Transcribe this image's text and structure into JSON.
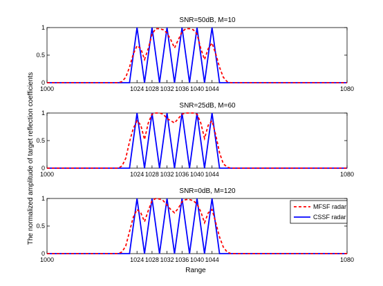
{
  "figure": {
    "ylabel": "The normalized amplitude of target reflection coefficients",
    "xlabel": "Range"
  },
  "legend": {
    "placement": "top-right of bottom subplot",
    "entries": [
      "MFSF radar",
      "CSSF radar"
    ]
  },
  "colors": {
    "mfsf": "#ff0000",
    "cssf": "#0000ff",
    "axes": "#000000"
  },
  "chart_data": [
    {
      "type": "line",
      "title": "SNR=50dB, M=10",
      "xlim": [
        1000,
        1080
      ],
      "ylim": [
        0,
        1
      ],
      "xticks": [
        1000,
        1024,
        1028,
        1032,
        1036,
        1040,
        1044,
        1080
      ],
      "yticks": [
        0,
        0.5,
        1
      ],
      "series": [
        {
          "name": "CSSF radar",
          "style": "solid",
          "color": "#0000ff",
          "x": [
            1000,
            1022,
            1024,
            1026,
            1028,
            1030,
            1032,
            1034,
            1036,
            1038,
            1040,
            1042,
            1044,
            1046,
            1080
          ],
          "y": [
            0,
            0,
            1,
            0,
            1,
            0,
            1,
            0,
            1,
            0,
            1,
            0,
            1,
            0,
            0
          ]
        },
        {
          "name": "MFSF radar",
          "style": "dashed",
          "color": "#ff0000",
          "x": [
            1000,
            1019,
            1020,
            1021,
            1022,
            1023,
            1024,
            1025,
            1026,
            1027,
            1028,
            1029,
            1030,
            1031,
            1032,
            1033,
            1034,
            1035,
            1036,
            1037,
            1038,
            1039,
            1040,
            1041,
            1042,
            1043,
            1044,
            1045,
            1046,
            1047,
            1048,
            1049,
            1080
          ],
          "y": [
            0,
            0,
            0.02,
            0.1,
            0.28,
            0.52,
            0.67,
            0.62,
            0.42,
            0.62,
            0.88,
            0.98,
            0.98,
            0.96,
            0.9,
            0.78,
            0.63,
            0.78,
            0.92,
            0.98,
            0.98,
            0.96,
            0.88,
            0.62,
            0.42,
            0.62,
            0.72,
            0.52,
            0.28,
            0.1,
            0.02,
            0,
            0
          ]
        }
      ]
    },
    {
      "type": "line",
      "title": "SNR=25dB, M=60",
      "xlim": [
        1000,
        1080
      ],
      "ylim": [
        0,
        1
      ],
      "xticks": [
        1000,
        1024,
        1028,
        1032,
        1036,
        1040,
        1044,
        1080
      ],
      "yticks": [
        0,
        0.5,
        1
      ],
      "series": [
        {
          "name": "CSSF radar",
          "style": "solid",
          "color": "#0000ff",
          "x": [
            1000,
            1022,
            1024,
            1026,
            1028,
            1030,
            1032,
            1034,
            1036,
            1038,
            1040,
            1042,
            1044,
            1046,
            1080
          ],
          "y": [
            0,
            0,
            1,
            0,
            1,
            0,
            1,
            0,
            1,
            0,
            1,
            0,
            1,
            0,
            0
          ]
        },
        {
          "name": "MFSF radar",
          "style": "dashed",
          "color": "#ff0000",
          "x": [
            1000,
            1019,
            1020,
            1021,
            1022,
            1023,
            1024,
            1025,
            1026,
            1027,
            1028,
            1029,
            1030,
            1031,
            1032,
            1033,
            1034,
            1035,
            1036,
            1037,
            1038,
            1039,
            1040,
            1041,
            1042,
            1043,
            1044,
            1045,
            1046,
            1047,
            1048,
            1049,
            1080
          ],
          "y": [
            0,
            0,
            0.04,
            0.18,
            0.48,
            0.72,
            0.86,
            0.78,
            0.52,
            0.82,
            0.98,
            1.0,
            1.0,
            0.98,
            0.9,
            0.86,
            0.82,
            0.9,
            0.98,
            1.0,
            1.0,
            1.0,
            0.98,
            0.82,
            0.54,
            0.78,
            0.86,
            0.6,
            0.28,
            0.08,
            0.02,
            0,
            0
          ]
        }
      ]
    },
    {
      "type": "line",
      "title": "SNR=0dB, M=120",
      "xlim": [
        1000,
        1080
      ],
      "ylim": [
        0,
        1
      ],
      "xticks": [
        1000,
        1024,
        1028,
        1032,
        1036,
        1040,
        1044,
        1080
      ],
      "yticks": [
        0,
        0.5,
        1
      ],
      "series": [
        {
          "name": "CSSF radar",
          "style": "solid",
          "color": "#0000ff",
          "x": [
            1000,
            1022,
            1024,
            1026,
            1028,
            1030,
            1032,
            1034,
            1036,
            1038,
            1040,
            1042,
            1044,
            1046,
            1080
          ],
          "y": [
            0,
            0,
            1,
            0,
            1,
            0,
            1,
            0,
            1,
            0,
            1,
            0,
            1,
            0,
            0
          ]
        },
        {
          "name": "MFSF radar",
          "style": "dashed",
          "color": "#ff0000",
          "x": [
            1000,
            1019,
            1020,
            1021,
            1022,
            1023,
            1024,
            1025,
            1026,
            1027,
            1028,
            1029,
            1030,
            1031,
            1032,
            1033,
            1034,
            1035,
            1036,
            1037,
            1038,
            1039,
            1040,
            1041,
            1042,
            1043,
            1044,
            1045,
            1046,
            1047,
            1048,
            1049,
            1080
          ],
          "y": [
            0,
            0,
            0.03,
            0.14,
            0.4,
            0.66,
            0.8,
            0.74,
            0.58,
            0.78,
            0.96,
            1.0,
            0.99,
            0.96,
            0.88,
            0.8,
            0.74,
            0.82,
            0.94,
            0.98,
            0.98,
            0.96,
            0.9,
            0.76,
            0.56,
            0.74,
            0.8,
            0.56,
            0.3,
            0.12,
            0.03,
            0,
            0
          ]
        }
      ]
    }
  ]
}
